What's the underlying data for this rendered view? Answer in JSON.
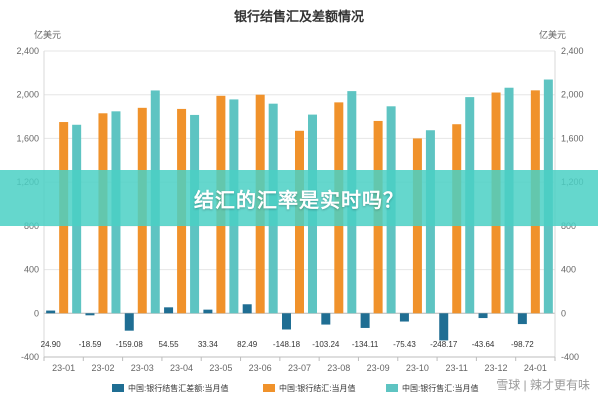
{
  "overlay": {
    "title": "结汇的汇率是实时吗？"
  },
  "watermark": "雪球 | 辣才更有味",
  "chart_data": {
    "type": "bar",
    "title": "银行结售汇及差额情况",
    "y_unit_left": "亿美元",
    "y_unit_right": "亿美元",
    "ylim": [
      -400,
      2400
    ],
    "yticks": [
      -400,
      0,
      400,
      800,
      1200,
      1600,
      2000,
      2400
    ],
    "ytick_labels": [
      "-400",
      "0",
      "400",
      "800",
      "1,200",
      "1,600",
      "2,000",
      "2,400"
    ],
    "categories": [
      "23-01",
      "23-02",
      "23-03",
      "23-04",
      "23-05",
      "23-06",
      "23-07",
      "23-08",
      "23-09",
      "23-10",
      "23-11",
      "23-12",
      "24-01"
    ],
    "series": [
      {
        "name": "中国:银行结售汇差额:当月值",
        "color": "#1f6e93",
        "values": [
          24.9,
          -18.59,
          -159.08,
          54.55,
          33.34,
          82.49,
          -148.18,
          -103.24,
          -134.11,
          -75.43,
          -248.17,
          -43.64,
          -98.72
        ],
        "labels": [
          "24.90",
          "-18.59",
          "-159.08",
          "54.55",
          "33.34",
          "82.49",
          "-148.18",
          "-103.24",
          "-134.11",
          "-75.43",
          "-248.17",
          "-43.64",
          "-98.72"
        ]
      },
      {
        "name": "中国:银行结汇:当月值",
        "color": "#f0922b",
        "values": [
          1750,
          1830,
          1880,
          1870,
          1990,
          2000,
          1670,
          1930,
          1760,
          1600,
          1730,
          2020,
          2040
        ]
      },
      {
        "name": "中国:银行售汇:当月值",
        "color": "#5ec4c2",
        "values": [
          1725,
          1848,
          2039,
          1815,
          1957,
          1918,
          1818,
          2033,
          1894,
          1675,
          1978,
          2064,
          2139
        ]
      }
    ],
    "legend_position": "bottom",
    "grid": true
  }
}
